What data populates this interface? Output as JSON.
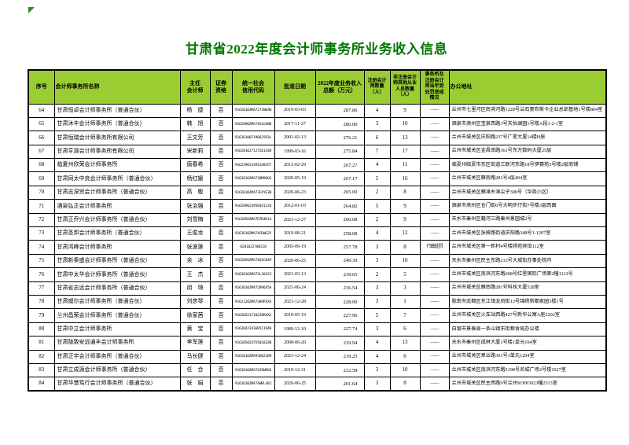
{
  "title": "甘肃省2022年度会计师事务所业务收入信息",
  "colors": {
    "title": "#007700",
    "header_bg": "#9ACD32",
    "corner_mark": "#2e8b1e"
  },
  "corner_mark_icon": "green-triangle-mark",
  "table": {
    "columns": [
      {
        "key": "no",
        "label": "序号"
      },
      {
        "key": "name",
        "label": "会计师事务所名称"
      },
      {
        "key": "chief",
        "label": "主任\n会计师"
      },
      {
        "key": "sec",
        "label": "证券\n资格"
      },
      {
        "key": "code",
        "label": "统一社会\n信用代码"
      },
      {
        "key": "date",
        "label": "批准日期"
      },
      {
        "key": "revenue",
        "label": "2022年度业务收入\n总额（万元）"
      },
      {
        "key": "cpa",
        "label": "注册会计\n师数量\n（人）"
      },
      {
        "key": "staff",
        "label": "非注册会计\n师其他从业\n人员数量\n（人）"
      },
      {
        "key": "penalty",
        "label": "事务所及\n注册会计\n师当年受\n处罚惩戒\n情况"
      },
      {
        "key": "address",
        "label": "办公地址"
      }
    ],
    "rows": [
      {
        "no": "64",
        "name": "甘肃恒卓会计师事务所（普通合伙）",
        "chief": "杨　捷",
        "sec": "否",
        "code": "91620103MA7271N6XW",
        "date": "2019-03-03",
        "revenue": "287.86",
        "cpa": "4",
        "staff": "9",
        "penalty": "——",
        "address": "兰州市七里河区南滨河路1228号兰石豪布斯卡企业总部基地1号楼804室"
      },
      {
        "no": "65",
        "name": "甘肃沐丰会计师事务所（普通合伙）",
        "chief": "韩　旭",
        "sec": "否",
        "code": "91620902MA74X1GX8B",
        "date": "2017-11-27",
        "revenue": "286.00",
        "cpa": "3",
        "staff": "10",
        "penalty": "——",
        "address": "酒泉市肃州区宝泉西路3号天怡澜园1号楼A段1-2-1室"
      },
      {
        "no": "66",
        "name": "甘肃恒瑞会计师事务所有限公司",
        "chief": "王文芳",
        "sec": "否",
        "code": "91620100719062593L",
        "date": "2001-02-13",
        "revenue": "276.21",
        "cpa": "6",
        "staff": "13",
        "penalty": "——",
        "address": "兰州市城关区庆阳路237号广星大厦14楼H座"
      },
      {
        "no": "67",
        "name": "甘肃亨源会计师事务所有限公司",
        "chief": "宋新莉",
        "sec": "否",
        "code": "91620102712726143R",
        "date": "1999-03-16",
        "revenue": "275.84",
        "cpa": "7",
        "staff": "17",
        "penalty": "——",
        "address": "兰州市城关区金昌南路361号东方数码大厦25层"
      },
      {
        "no": "68",
        "name": "临夏州欣荣会计师事务所",
        "chief": "唐春希",
        "sec": "否",
        "code": "91622901339124835T",
        "date": "2012-02-29",
        "revenue": "267.27",
        "cpa": "4",
        "staff": "11",
        "penalty": "——",
        "address": "临夏州临夏市东区街道三联河东路18号伊赛苑3号楼2层商铺"
      },
      {
        "no": "69",
        "name": "甘肃同太中良会计师事务所（普通合伙）",
        "chief": "杨红媛",
        "sec": "否",
        "code": "91620102MA71BM99Q3",
        "date": "2020-05-19",
        "revenue": "267.17",
        "cpa": "5",
        "staff": "16",
        "penalty": "——",
        "address": "兰州市城关区雁南路281号4层404室"
      },
      {
        "no": "70",
        "name": "甘肃志深贸会计师事务所（普通合伙）",
        "chief": "高　敬",
        "sec": "否",
        "code": "91620102MA73F4YE3B",
        "date": "2020-06-23",
        "revenue": "265.00",
        "cpa": "2",
        "staff": "8",
        "penalty": "——",
        "address": "兰州市城关区雁滩乡滩尖子300号（华商小区）"
      },
      {
        "no": "71",
        "name": "酒泉弘正会计师事务所",
        "chief": "张治强",
        "sec": "否",
        "code": "91620902395044112Q",
        "date": "2012-01-03",
        "revenue": "264.82",
        "cpa": "5",
        "staff": "9",
        "penalty": "——",
        "address": "酒泉市肃州区仓门街6号大明步行街7号楼3层西面"
      },
      {
        "no": "72",
        "name": "甘肃正乔兴会计师事务所（普通合伙）",
        "chief": "刘雪梅",
        "sec": "否",
        "code": "91620502MA7D7R4D14",
        "date": "2021-12-27",
        "revenue": "260.08",
        "cpa": "2",
        "staff": "9",
        "penalty": "——",
        "address": "天水市秦州区藉河三路秦州景园城2号"
      },
      {
        "no": "73",
        "name": "甘肃圣邦会计师事务所（普通合伙）",
        "chief": "王俊龙",
        "sec": "否",
        "code": "91620102MA74CDWG25",
        "date": "2019-08-21",
        "revenue": "258.08",
        "cpa": "4",
        "staff": "12",
        "penalty": "——",
        "address": "兰州市城关区张掖路街道庆阳路348号1-1207室"
      },
      {
        "no": "74",
        "name": "甘肃鸿峰会计师事务所",
        "chief": "张波莲",
        "sec": "否",
        "code": "6201022700210",
        "date": "2005-09-19",
        "revenue": "257.78",
        "cpa": "3",
        "staff": "8",
        "penalty": "行政处罚",
        "address": "兰州市城关区第一新村4号楼绣苑宾馆112室"
      },
      {
        "no": "75",
        "name": "甘肃新秦盛会计师事务所（普通合伙）",
        "chief": "余　冰",
        "sec": "否",
        "code": "91620502MA74Q1C849",
        "date": "2020-06-25",
        "revenue": "249.39",
        "cpa": "3",
        "staff": "10",
        "penalty": "——",
        "address": "天水市秦州区民主东路213号大城街办事处院内"
      },
      {
        "no": "76",
        "name": "甘肃中太华会计师事务所（普通合伙）",
        "chief": "王　杰",
        "sec": "否",
        "code": "91620102MA73LJ6X23",
        "date": "2021-03-13",
        "revenue": "239.65",
        "cpa": "2",
        "staff": "5",
        "penalty": "——",
        "address": "兰州市城关区南滨河东路608号红星国际广场第2幢1112号"
      },
      {
        "no": "77",
        "name": "甘肃省志远会计师事务所（普通合伙）",
        "chief": "闵　琦",
        "sec": "否",
        "code": "91620102MA72896X5A",
        "date": "2021-06-24",
        "revenue": "236.54",
        "cpa": "3",
        "staff": "3",
        "penalty": "——",
        "address": "兰州市城关区雁南路281号科技大厦528室"
      },
      {
        "no": "78",
        "name": "甘肃威尔会计师事务所（普通合伙）",
        "chief": "刘彦琴",
        "sec": "否",
        "code": "91621202MA7389P3X4",
        "date": "2021-12-28",
        "revenue": "228.99",
        "cpa": "3",
        "staff": "1",
        "penalty": "——",
        "address": "陇南市武都区东江镇龙凤街13号锦绣新都家园3楼1号"
      },
      {
        "no": "79",
        "name": "兰州昌荣会计师事务所（普通合伙）",
        "chief": "徐家茜",
        "sec": "否",
        "code": "91620321710228R4X2",
        "date": "2010-05-19",
        "revenue": "227.96",
        "cpa": "5",
        "staff": "7",
        "penalty": "——",
        "address": "兰州市城关区火车站西路427号新华公寓A座2202室"
      },
      {
        "no": "80",
        "name": "甘肃中立会计师事务所",
        "chief": "黄　宝",
        "sec": "否",
        "code": "91620423436051194B",
        "date": "1989-12-10",
        "revenue": "227.74",
        "cpa": "3",
        "staff": "6",
        "penalty": "——",
        "address": "白银市景泰县一条山镇东街粮食局办公楼"
      },
      {
        "no": "81",
        "name": "甘肃陇致安远通丰会计师事务所",
        "chief": "李军莲",
        "sec": "否",
        "code": "91620502475501832N",
        "date": "2008-06-20",
        "revenue": "219.94",
        "cpa": "4",
        "staff": "13",
        "penalty": "——",
        "address": "天水市秦州区成林大厦1号楼1单元104室"
      },
      {
        "no": "82",
        "name": "甘肃正宇会计师事务所（普通合伙）",
        "chief": "马长健",
        "sec": "否",
        "code": "91620102MA93Q021B9",
        "date": "2021-12-24",
        "revenue": "219.25",
        "cpa": "4",
        "staff": "6",
        "penalty": "——",
        "address": "兰州市城关区皋兰路301号1单元1204室"
      },
      {
        "no": "83",
        "name": "甘肃立成源会计师事务所（普通合伙）",
        "chief": "任　合",
        "sec": "否",
        "code": "91620102MA7429W9G6",
        "date": "2019-12-31",
        "revenue": "212.58",
        "cpa": "3",
        "staff": "10",
        "penalty": "——",
        "address": "兰州市城关区南滨河东路5198号名城广场2号楼1027室"
      },
      {
        "no": "84",
        "name": "甘肃华慧笃行会计师事务所（普通合伙）",
        "chief": "张　娟",
        "sec": "否",
        "code": "91620102MA74WRL48J",
        "date": "2020-06-25",
        "revenue": "201.64",
        "cpa": "3",
        "staff": "8",
        "penalty": "——",
        "address": "兰州市城关区民主西路9号兰州SOHO023幢2313室"
      }
    ]
  }
}
